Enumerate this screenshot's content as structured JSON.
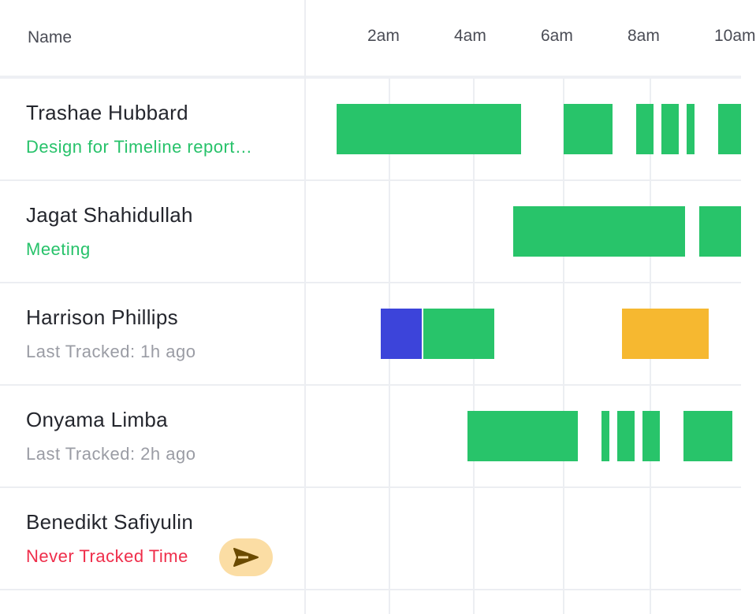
{
  "header": {
    "name_label": "Name",
    "hours": [
      "2am",
      "4am",
      "6am",
      "8am",
      "10am"
    ]
  },
  "colors": {
    "tracked": "#28c46a",
    "blue_activity": "#3c44da",
    "idle": "#f6b830",
    "never_tracked": "#ef2d4a",
    "send_button_bg": "#fbdda4"
  },
  "rows": [
    {
      "name": "Trashae Hubbard",
      "status": "Design for Timeline report…",
      "status_type": "task"
    },
    {
      "name": "Jagat Shahidullah",
      "status": "Meeting",
      "status_type": "task"
    },
    {
      "name": "Harrison Phillips",
      "status": "Last Tracked: 1h ago",
      "status_type": "last"
    },
    {
      "name": "Onyama Limba",
      "status": "Last Tracked: 2h ago",
      "status_type": "last"
    },
    {
      "name": "Benedikt Safiyulin",
      "status": "Never Tracked Time",
      "status_type": "never",
      "action_icon": "send-icon"
    }
  ]
}
